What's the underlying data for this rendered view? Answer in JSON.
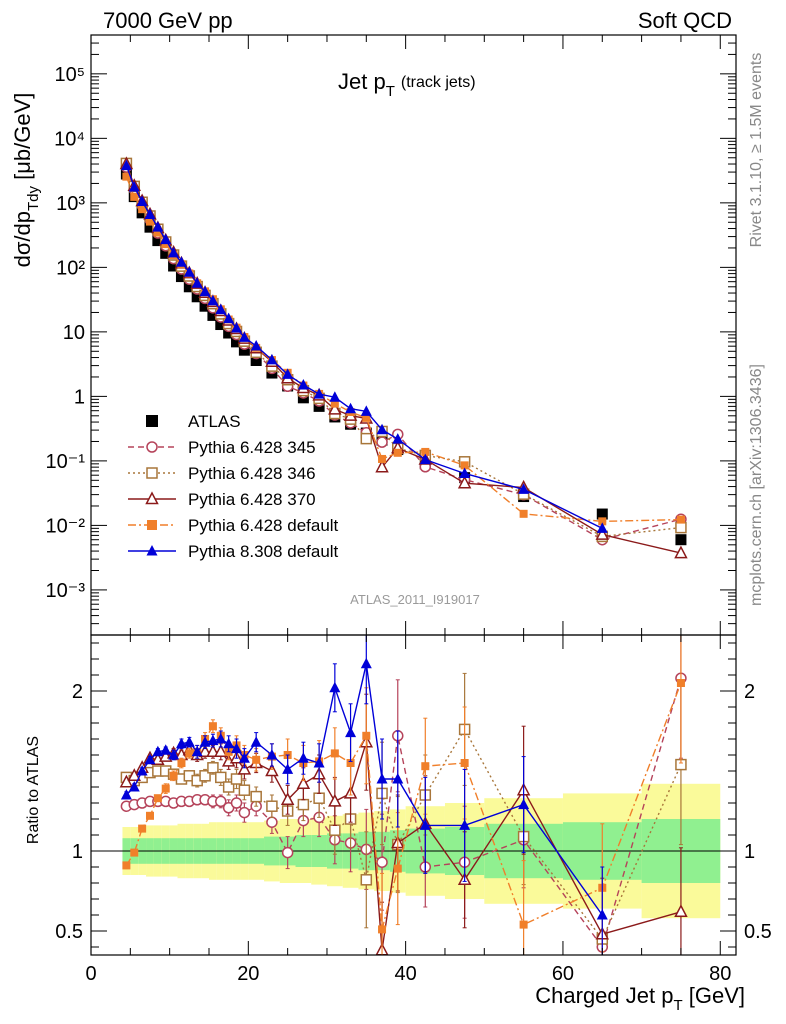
{
  "header": {
    "left": "7000 GeV pp",
    "right": "Soft QCD"
  },
  "title": {
    "main": "Jet p",
    "sub": "T",
    "note": "(track jets)"
  },
  "side_labels": {
    "rivet": "Rivet 3.1.10, ≥ 1.5M events",
    "mcplots": "mcplots.cern.ch [arXiv:1306.3436]"
  },
  "watermark": "ATLAS_2011_I919017",
  "axes": {
    "ylabel_main_pre": "dσ/dp",
    "ylabel_main_sub": "Tdy",
    "ylabel_main_post": " [μb/GeV]",
    "ylabel_ratio": "Ratio to ATLAS",
    "xlabel_pre": "Charged Jet p",
    "xlabel_sub": "T",
    "xlabel_post": " [GeV]"
  },
  "colors": {
    "atlas": "#000000",
    "p345": "#b5435a",
    "p346": "#a8763a",
    "p370": "#8b1a1a",
    "p6def": "#f07f2a",
    "p8def": "#0000d8",
    "band_inner": "#90f090",
    "band_outer": "#fafa9a"
  },
  "chart_data": {
    "type": "scatter",
    "title": "Jet pT (track jets)",
    "x_edges": [
      4,
      5,
      6,
      7,
      8,
      9,
      10,
      11,
      12,
      13,
      14,
      15,
      16,
      17,
      18,
      19,
      20,
      22,
      24,
      26,
      28,
      30,
      32,
      34,
      36,
      38,
      40,
      45,
      50,
      60,
      70,
      80
    ],
    "x_centers": [
      4.5,
      5.5,
      6.5,
      7.5,
      8.5,
      9.5,
      10.5,
      11.5,
      12.5,
      13.5,
      14.5,
      15.5,
      16.5,
      17.5,
      18.5,
      19.5,
      21,
      23,
      25,
      27,
      29,
      31,
      33,
      35,
      37,
      39,
      42.5,
      47.5,
      55,
      65,
      75
    ],
    "xlim": [
      0,
      82
    ],
    "main_panel": {
      "ylog": true,
      "ylim": [
        0.0002,
        400000
      ],
      "yticks": [
        {
          "v": 0.001,
          "label": "10⁻³"
        },
        {
          "v": 0.01,
          "label": "10⁻²"
        },
        {
          "v": 0.1,
          "label": "10⁻¹"
        },
        {
          "v": 1,
          "label": "1"
        },
        {
          "v": 10,
          "label": "10"
        },
        {
          "v": 100,
          "label": "10²"
        },
        {
          "v": 1000,
          "label": "10³"
        },
        {
          "v": 10000,
          "label": "10⁴"
        },
        {
          "v": 100000,
          "label": "10⁵"
        }
      ],
      "atlas": [
        2800,
        1250,
        700,
        420,
        260,
        165,
        105,
        72,
        50,
        35,
        25,
        18,
        13,
        9.6,
        7.0,
        5.2,
        3.6,
        2.3,
        1.45,
        0.95,
        0.7,
        0.48,
        0.37,
        0.27,
        0.21,
        0.15,
        0.09,
        0.055,
        0.028,
        0.015,
        0.006
      ]
    },
    "ratio_panel": {
      "ylim": [
        0.35,
        2.35
      ],
      "yticks": [
        {
          "v": 0.5,
          "label": "0.5"
        },
        {
          "v": 1,
          "label": "1"
        },
        {
          "v": 2,
          "label": "2"
        }
      ],
      "band_inner": [
        0.08,
        0.08,
        0.08,
        0.08,
        0.08,
        0.08,
        0.08,
        0.08,
        0.08,
        0.08,
        0.08,
        0.08,
        0.08,
        0.08,
        0.08,
        0.08,
        0.08,
        0.09,
        0.09,
        0.1,
        0.1,
        0.11,
        0.11,
        0.12,
        0.12,
        0.13,
        0.14,
        0.15,
        0.17,
        0.18,
        0.2
      ],
      "band_outer": [
        0.15,
        0.15,
        0.15,
        0.16,
        0.16,
        0.16,
        0.16,
        0.17,
        0.17,
        0.17,
        0.17,
        0.18,
        0.18,
        0.18,
        0.18,
        0.18,
        0.18,
        0.19,
        0.2,
        0.2,
        0.21,
        0.22,
        0.23,
        0.24,
        0.25,
        0.26,
        0.28,
        0.3,
        0.33,
        0.36,
        0.42
      ]
    },
    "series": [
      {
        "name": "ATLAS",
        "key": "atlas",
        "marker": "square-filled",
        "line": "none",
        "ratio": [
          1,
          1,
          1,
          1,
          1,
          1,
          1,
          1,
          1,
          1,
          1,
          1,
          1,
          1,
          1,
          1,
          1,
          1,
          1,
          1,
          1,
          1,
          1,
          1,
          1,
          1,
          1,
          1,
          1,
          1,
          1
        ]
      },
      {
        "name": "Pythia 6.428 345",
        "key": "p345",
        "marker": "circle-open",
        "line": "dashed",
        "ratio": [
          1.28,
          1.29,
          1.3,
          1.31,
          1.31,
          1.31,
          1.3,
          1.31,
          1.31,
          1.32,
          1.32,
          1.31,
          1.31,
          1.27,
          1.3,
          1.24,
          1.28,
          1.18,
          0.99,
          1.19,
          1.21,
          1.07,
          1.05,
          1.01,
          0.93,
          1.72,
          0.9,
          0.93,
          1.07,
          0.4,
          2.08
        ],
        "err": [
          0.02,
          0.02,
          0.02,
          0.02,
          0.02,
          0.02,
          0.02,
          0.02,
          0.03,
          0.03,
          0.03,
          0.04,
          0.04,
          0.05,
          0.05,
          0.06,
          0.06,
          0.07,
          0.1,
          0.1,
          0.12,
          0.15,
          0.18,
          0.25,
          0.3,
          0.35,
          0.25,
          0.35,
          0.3,
          0.35,
          0.5
        ]
      },
      {
        "name": "Pythia 6.428 346",
        "key": "p346",
        "marker": "square-open",
        "line": "dotted",
        "ratio": [
          1.46,
          1.44,
          1.46,
          1.49,
          1.5,
          1.5,
          1.48,
          1.45,
          1.47,
          1.44,
          1.47,
          1.52,
          1.46,
          1.4,
          1.45,
          1.38,
          1.34,
          1.28,
          1.25,
          1.29,
          1.33,
          1.13,
          1.2,
          0.82,
          1.36,
          1.04,
          1.35,
          1.76,
          1.09,
          0.45,
          1.54
        ],
        "err": [
          0.02,
          0.02,
          0.02,
          0.02,
          0.02,
          0.02,
          0.03,
          0.03,
          0.03,
          0.04,
          0.04,
          0.04,
          0.05,
          0.05,
          0.06,
          0.06,
          0.06,
          0.07,
          0.09,
          0.1,
          0.12,
          0.15,
          0.18,
          0.3,
          0.32,
          0.3,
          0.25,
          0.35,
          0.3,
          0.3,
          0.5
        ]
      },
      {
        "name": "Pythia 6.428 370",
        "key": "p370",
        "marker": "triangle-open",
        "line": "solid",
        "ratio": [
          1.43,
          1.47,
          1.52,
          1.58,
          1.57,
          1.59,
          1.61,
          1.6,
          1.63,
          1.6,
          1.62,
          1.62,
          1.62,
          1.56,
          1.58,
          1.51,
          1.55,
          1.5,
          1.32,
          1.42,
          1.48,
          1.31,
          1.36,
          1.68,
          0.38,
          1.05,
          1.17,
          0.82,
          1.38,
          0.48,
          0.62
        ],
        "err": [
          0.02,
          0.02,
          0.02,
          0.02,
          0.02,
          0.02,
          0.03,
          0.03,
          0.03,
          0.04,
          0.04,
          0.04,
          0.05,
          0.05,
          0.06,
          0.06,
          0.06,
          0.07,
          0.09,
          0.1,
          0.12,
          0.15,
          0.18,
          0.3,
          0.3,
          0.3,
          0.3,
          0.3,
          0.4,
          0.35,
          0.4
        ]
      },
      {
        "name": "Pythia 6.428 default",
        "key": "p6def",
        "marker": "square-filled",
        "line": "dashdot",
        "ratio": [
          0.91,
          0.99,
          1.14,
          1.22,
          1.33,
          1.39,
          1.47,
          1.55,
          1.61,
          1.62,
          1.7,
          1.78,
          1.72,
          1.62,
          1.66,
          1.6,
          1.57,
          1.59,
          1.6,
          1.55,
          1.56,
          1.61,
          1.55,
          1.72,
          0.51,
          0.89,
          1.53,
          1.55,
          0.54,
          0.77,
          2.05
        ],
        "err": [
          0.02,
          0.02,
          0.02,
          0.02,
          0.02,
          0.03,
          0.03,
          0.03,
          0.03,
          0.04,
          0.04,
          0.04,
          0.05,
          0.05,
          0.06,
          0.06,
          0.07,
          0.08,
          0.1,
          0.11,
          0.13,
          0.16,
          0.2,
          0.3,
          0.35,
          0.35,
          0.3,
          0.35,
          0.4,
          0.4,
          0.5
        ]
      },
      {
        "name": "Pythia 8.308 default",
        "key": "p8def",
        "marker": "triangle-filled",
        "line": "solid",
        "ratio": [
          1.35,
          1.4,
          1.5,
          1.57,
          1.62,
          1.63,
          1.6,
          1.67,
          1.68,
          1.62,
          1.68,
          1.69,
          1.7,
          1.67,
          1.64,
          1.58,
          1.68,
          1.6,
          1.51,
          1.58,
          1.55,
          2.02,
          1.74,
          2.17,
          1.45,
          1.45,
          1.16,
          1.16,
          1.29,
          0.6,
          0.0
        ],
        "err": [
          0.02,
          0.02,
          0.02,
          0.02,
          0.02,
          0.02,
          0.03,
          0.03,
          0.03,
          0.04,
          0.04,
          0.04,
          0.05,
          0.05,
          0.06,
          0.06,
          0.06,
          0.07,
          0.09,
          0.1,
          0.12,
          0.15,
          0.18,
          0.25,
          0.25,
          0.3,
          0.3,
          0.35,
          0.3,
          0.3,
          0.4
        ]
      }
    ]
  }
}
